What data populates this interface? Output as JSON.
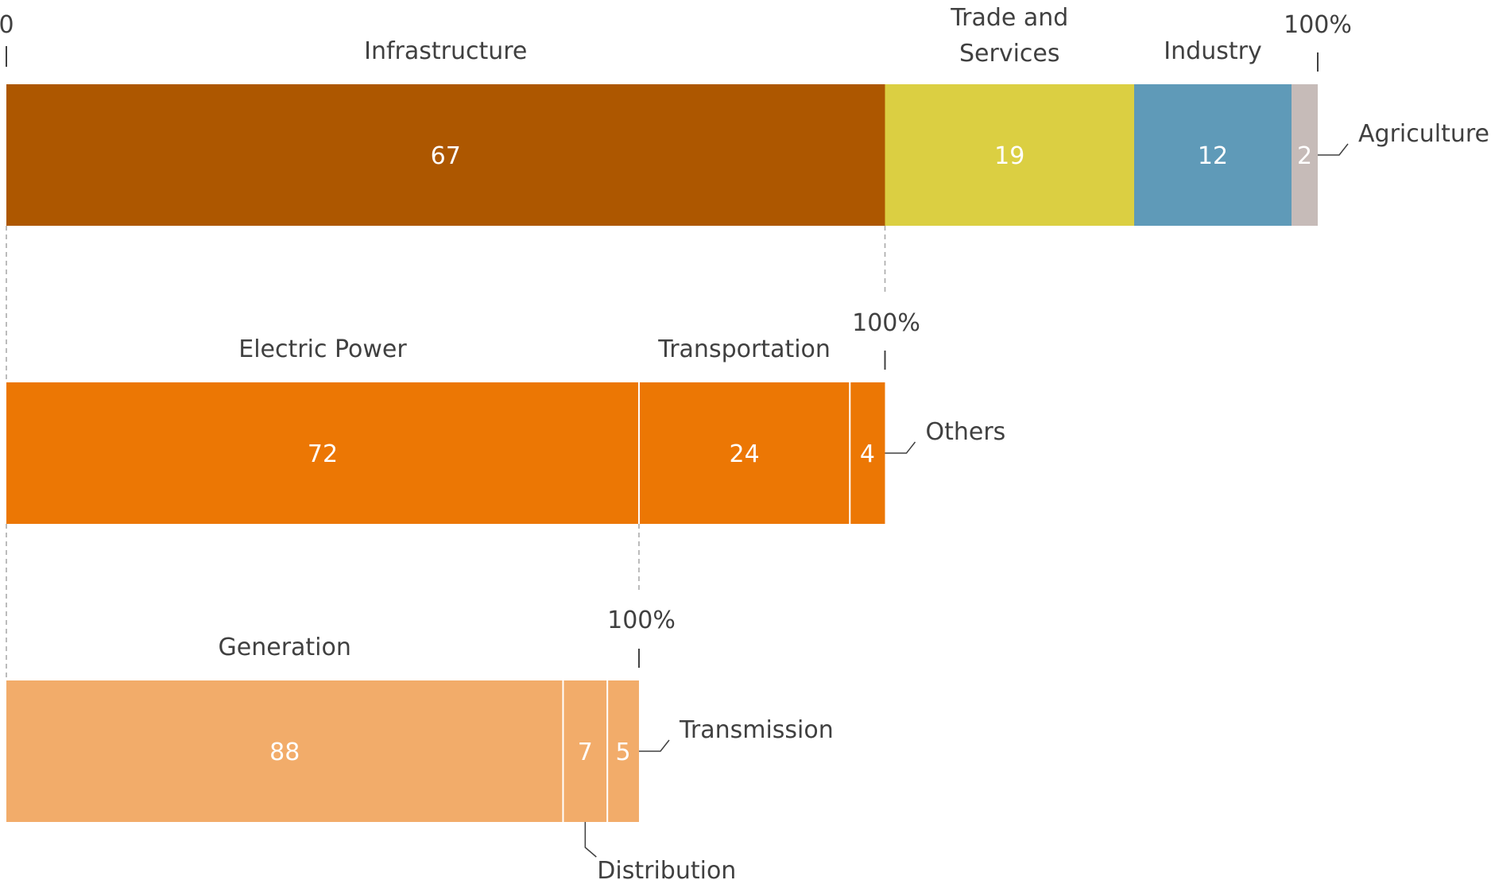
{
  "chart_data": {
    "type": "bar",
    "orientation": "horizontal-stacked",
    "unit": "%",
    "axis_start_label": "0",
    "axis_end_label": "100%",
    "rows": [
      {
        "total": 100,
        "segments": [
          {
            "label": "Infrastructure",
            "value": 67,
            "color": "#AD5700"
          },
          {
            "label_lines": [
              "Trade and",
              "Services"
            ],
            "value": 19,
            "color": "#DBCF42"
          },
          {
            "label": "Industry",
            "value": 12,
            "color": "#5F9AB8"
          },
          {
            "label": "Agriculture",
            "value": 2,
            "color": "#C6BBB8"
          }
        ]
      },
      {
        "total": 67,
        "segments": [
          {
            "label": "Electric Power",
            "value": 72,
            "color": "#EC7704"
          },
          {
            "label": "Transportation",
            "value": 24,
            "color": "#EC7704"
          },
          {
            "label": "Others",
            "value": 4,
            "color": "#EC7704"
          }
        ]
      },
      {
        "total": 48.24,
        "segments": [
          {
            "label": "Generation",
            "value": 88,
            "color": "#F2AC6A"
          },
          {
            "label": "Distribution",
            "value": 7,
            "color": "#F2AC6A"
          },
          {
            "label": "Transmission",
            "value": 5,
            "color": "#F2AC6A"
          }
        ]
      }
    ]
  }
}
